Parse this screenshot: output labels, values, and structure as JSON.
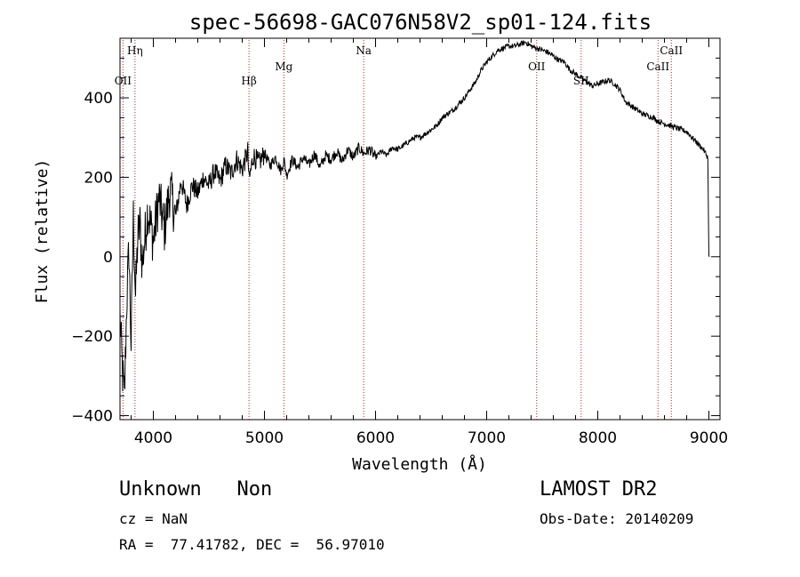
{
  "chart_data": {
    "type": "line",
    "title": "spec-56698-GAC076N58V2_sp01-124.fits",
    "xlabel": "Wavelength (Å)",
    "ylabel": "Flux (relative)",
    "xlim": [
      3700,
      9100
    ],
    "ylim": [
      -410,
      550
    ],
    "xticks": [
      4000,
      5000,
      6000,
      7000,
      8000,
      9000
    ],
    "xtick_labels": [
      "4000",
      "5000",
      "6000",
      "7000",
      "8000",
      "9000"
    ],
    "yticks": [
      -400,
      -200,
      0,
      200,
      400
    ],
    "ytick_labels": [
      "−400",
      "−200",
      "0",
      "200",
      "400"
    ],
    "grid": false,
    "series": [
      {
        "x": [
          3700,
          3720,
          3740,
          3760,
          3780,
          3800,
          3820,
          3840,
          3860,
          3880,
          3900,
          3950,
          4000,
          4050,
          4100,
          4150,
          4200,
          4250,
          4300,
          4350,
          4400,
          4450,
          4500,
          4550,
          4600,
          4650,
          4700,
          4750,
          4800,
          4850,
          4861,
          4900,
          4950,
          5000,
          5050,
          5100,
          5150,
          5175,
          5200,
          5250,
          5300,
          5350,
          5400,
          5450,
          5500,
          5550,
          5600,
          5650,
          5700,
          5750,
          5800,
          5850,
          5893,
          5950,
          6000,
          6050,
          6100,
          6150,
          6200,
          6250,
          6300,
          6350,
          6400,
          6450,
          6500,
          6550,
          6600,
          6650,
          6700,
          6750,
          6800,
          6850,
          6900,
          6950,
          7000,
          7050,
          7100,
          7150,
          7200,
          7250,
          7300,
          7350,
          7400,
          7450,
          7500,
          7550,
          7600,
          7650,
          7700,
          7750,
          7800,
          7850,
          7900,
          7950,
          8000,
          8050,
          8100,
          8150,
          8200,
          8250,
          8300,
          8350,
          8400,
          8450,
          8500,
          8550,
          8600,
          8650,
          8700,
          8750,
          8800,
          8850,
          8900,
          8950,
          8990,
          9000,
          9005
        ],
        "y": [
          -150,
          -280,
          -360,
          -120,
          20,
          -220,
          100,
          -100,
          50,
          80,
          -20,
          120,
          40,
          150,
          70,
          170,
          100,
          190,
          130,
          180,
          160,
          200,
          180,
          215,
          190,
          230,
          210,
          245,
          220,
          265,
          190,
          255,
          235,
          260,
          230,
          250,
          215,
          245,
          205,
          245,
          225,
          250,
          230,
          260,
          225,
          255,
          245,
          265,
          240,
          270,
          250,
          275,
          260,
          270,
          250,
          265,
          255,
          275,
          270,
          280,
          290,
          300,
          300,
          310,
          320,
          330,
          350,
          360,
          370,
          385,
          400,
          420,
          440,
          470,
          490,
          505,
          520,
          525,
          530,
          530,
          535,
          540,
          530,
          525,
          520,
          515,
          505,
          495,
          490,
          470,
          460,
          450,
          440,
          430,
          435,
          440,
          445,
          435,
          420,
          390,
          380,
          370,
          360,
          355,
          350,
          340,
          335,
          330,
          325,
          320,
          315,
          300,
          285,
          270,
          250,
          0,
          0
        ]
      }
    ],
    "line_markers": [
      {
        "label": "Hη",
        "x": 3835,
        "label_row": "high"
      },
      {
        "label": "OII",
        "x": 3727,
        "label_row": "low"
      },
      {
        "label": "Hβ",
        "x": 4861,
        "label_row": "low"
      },
      {
        "label": "Mg",
        "x": 5175,
        "label_row": "mid"
      },
      {
        "label": "Na",
        "x": 5893,
        "label_row": "high"
      },
      {
        "label": "OII",
        "x": 7450,
        "label_row": "mid"
      },
      {
        "label": "SII",
        "x": 7850,
        "label_row": "low"
      },
      {
        "label": "CaII",
        "x": 8542,
        "label_row": "mid"
      },
      {
        "label": "CaII",
        "x": 8662,
        "label_row": "high"
      }
    ],
    "marker_color": "#b22222"
  },
  "footer": {
    "object_class": "Unknown   Non",
    "survey": "LAMOST DR2",
    "redshift": "cz = NaN",
    "obs_date": "Obs-Date: 20140209",
    "coords": "RA =  77.41782, DEC =  56.97010"
  }
}
